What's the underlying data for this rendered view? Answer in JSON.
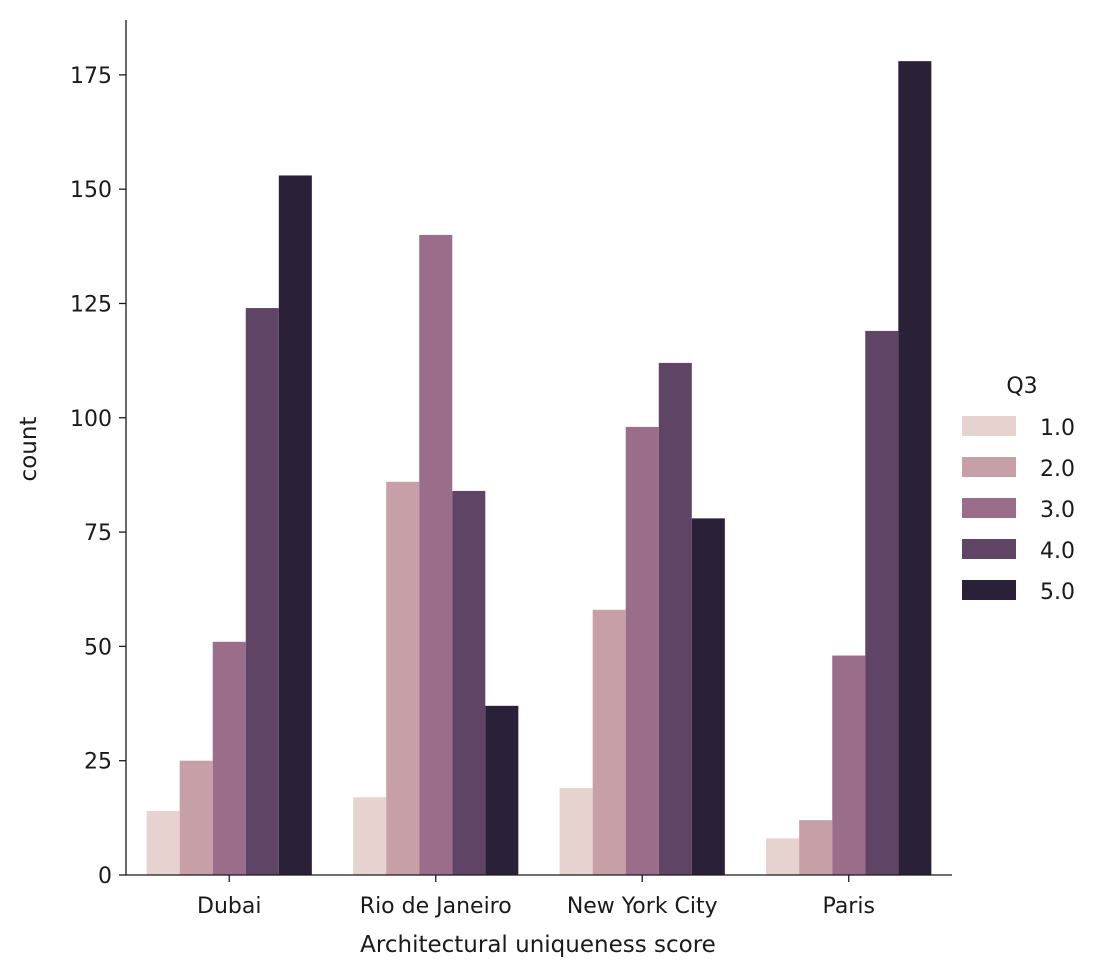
{
  "chart_data": {
    "type": "bar",
    "categories": [
      "Dubai",
      "Rio de Janeiro",
      "New York City",
      "Paris"
    ],
    "xlabel": "Architectural uniqueness score",
    "ylabel": "count",
    "ylim": [
      0,
      187
    ],
    "yticks": [
      0,
      25,
      50,
      75,
      100,
      125,
      150,
      175
    ],
    "grid": false,
    "legend": {
      "title": "Q3",
      "placement": "right"
    },
    "series": [
      {
        "name": "1.0",
        "color": "#e6d3d0",
        "values": [
          14,
          17,
          19,
          8
        ]
      },
      {
        "name": "2.0",
        "color": "#c6a0a6",
        "values": [
          25,
          86,
          58,
          12
        ]
      },
      {
        "name": "3.0",
        "color": "#9a6e8a",
        "values": [
          51,
          140,
          98,
          48
        ]
      },
      {
        "name": "4.0",
        "color": "#604466",
        "values": [
          124,
          84,
          112,
          119
        ]
      },
      {
        "name": "5.0",
        "color": "#2a2138",
        "values": [
          153,
          37,
          78,
          178
        ]
      }
    ]
  }
}
